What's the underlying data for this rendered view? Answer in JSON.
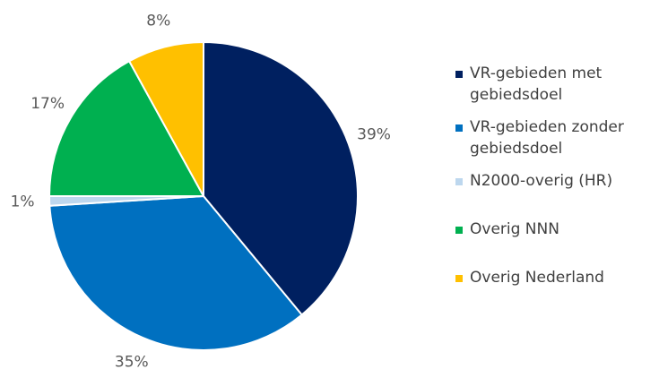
{
  "chart_data": {
    "type": "pie",
    "categories": [
      "VR-gebieden met gebiedsdoel",
      "VR-gebieden zonder gebiedsdoel",
      "N2000-overig (HR)",
      "Overig NNN",
      "Overig Nederland"
    ],
    "values": [
      39,
      35,
      1,
      17,
      8
    ],
    "value_labels": [
      "39%",
      "35%",
      "1%",
      "17%",
      "8%"
    ],
    "colors": [
      "#002060",
      "#0070c0",
      "#bdd7ee",
      "#00b050",
      "#ffc000"
    ],
    "legend": "right"
  }
}
